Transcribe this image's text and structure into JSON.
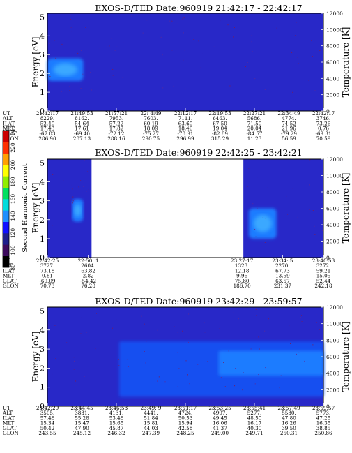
{
  "chart_data": [
    {
      "type": "heatmap",
      "title": "EXOS-D/TED   Date:960919  21:42:17 - 22:42:17",
      "ylabel": "Energy [eV]",
      "y2label": "Temperature [K]",
      "ylim": [
        0,
        5.2
      ],
      "y2lim": [
        0,
        12000
      ],
      "yticks": [
        "0",
        "1",
        "2",
        "3",
        "4",
        "5"
      ],
      "y2ticks": [
        "0",
        "2000",
        "4000",
        "6000",
        "8000",
        "10000",
        "12000"
      ],
      "gap": null,
      "features": [
        {
          "kind": "blob",
          "x0": 0.0,
          "x1": 0.13,
          "y0": 1.6,
          "y1": 2.8,
          "level": "high"
        }
      ],
      "table": {
        "labels": [
          "UT",
          "ALT",
          "ILAT",
          "MLT",
          "GLAT",
          "GLON"
        ],
        "columns": [
          [
            "21:42:17",
            "8229.",
            "52.40",
            "17.43",
            "-67.03",
            "286.90"
          ],
          [
            "21:49:53",
            "8162.",
            "54.64",
            "17.61",
            "-69.40",
            "287.13"
          ],
          [
            "21:57:21",
            "7953.",
            "57.22",
            "17.82",
            "-72.12",
            "288.16"
          ],
          [
            "22: 4:49",
            "7603.",
            "60.19",
            "18.09",
            "-75.27",
            "290.75"
          ],
          [
            "22:12:17",
            "7111.",
            "63.60",
            "18.46",
            "-78.91",
            "296.99"
          ],
          [
            "22:19:53",
            "6463.",
            "67.50",
            "19.04",
            "-82.89",
            "315.29"
          ],
          [
            "22:27:21",
            "5686.",
            "71.50",
            "20.04",
            "-84.57",
            "11.23"
          ],
          [
            "22:34:49",
            "4774.",
            "74.52",
            "21.96",
            "-79.29",
            "56.59"
          ],
          [
            "22:42:17",
            "3746.",
            "73.26",
            "0.76",
            "-69.31",
            "70.59"
          ]
        ]
      }
    },
    {
      "type": "heatmap",
      "title": "EXOS-D/TED   Date:960919  22:42:25 - 23:42:21",
      "ylabel": "Energy [eV]",
      "y2label": "Temperature [K]",
      "ylim": [
        0,
        5.2
      ],
      "y2lim": [
        0,
        12000
      ],
      "yticks": [
        "0",
        "1",
        "2",
        "3",
        "4",
        "5"
      ],
      "y2ticks": [
        "0",
        "2000",
        "4000",
        "6000",
        "8000",
        "10000",
        "12000"
      ],
      "gap": {
        "x0": 0.16,
        "x1": 0.71
      },
      "features": [
        {
          "kind": "blob",
          "x0": 0.09,
          "x1": 0.13,
          "y0": 1.9,
          "y1": 3.1,
          "level": "high"
        },
        {
          "kind": "blob",
          "x0": 0.73,
          "x1": 0.83,
          "y0": 1.0,
          "y1": 2.6,
          "level": "high"
        }
      ],
      "table": {
        "labels": [
          "UT",
          "ALT",
          "ILAT",
          "MLT",
          "GLAT",
          "GLON"
        ],
        "columns": [
          [
            "22:42:25",
            "3727.",
            "73.18",
            "0.81",
            "-69.09",
            "70.73"
          ],
          [
            "22:50: 1",
            "2604.",
            "63.82",
            "2.82",
            "-54.42",
            "76.28"
          ],
          [
            "23:27:17",
            "1323.",
            "12.18",
            "9.96",
            "75.80",
            "186.70"
          ],
          [
            "23:34: 5",
            "2270.",
            "67.73",
            "13.59",
            "63.57",
            "231.37"
          ],
          [
            "23:40:53",
            "3272.",
            "59.21",
            "15.05",
            "52.44",
            "242.18"
          ]
        ],
        "positions": [
          0.0,
          0.148,
          0.705,
          0.852,
          1.0
        ]
      }
    },
    {
      "type": "heatmap",
      "title": "EXOS-D/TED   Date:960919  23:42:29 - 23:59:57",
      "ylabel": "Energy [eV]",
      "y2label": "Temperature [K]",
      "ylim": [
        0,
        5.2
      ],
      "y2lim": [
        0,
        12000
      ],
      "yticks": [
        "0",
        "1",
        "2",
        "3",
        "4",
        "5"
      ],
      "y2ticks": [
        "0",
        "2000",
        "4000",
        "6000",
        "8000",
        "10000",
        "12000"
      ],
      "gap": null,
      "features": [
        {
          "kind": "band",
          "x0": 0.26,
          "x1": 1.0,
          "y0": 0.5,
          "y1": 3.4,
          "level": "mid"
        },
        {
          "kind": "band",
          "x0": 0.62,
          "x1": 1.0,
          "y0": 1.6,
          "y1": 2.9,
          "level": "high"
        }
      ],
      "table": {
        "labels": [
          "UT",
          "ALT",
          "ILAT",
          "MLT",
          "GLAT",
          "GLON"
        ],
        "columns": [
          [
            "23:42:29",
            "3505.",
            "57.48",
            "15.34",
            "50.42",
            "243.55"
          ],
          [
            "23:44:45",
            "3831.",
            "55.28",
            "15.47",
            "47.90",
            "245.12"
          ],
          [
            "23:46:53",
            "4131.",
            "53.48",
            "15.65",
            "45.87",
            "246.32"
          ],
          [
            "23:49: 9",
            "4441.",
            "51.84",
            "15.81",
            "44.03",
            "247.39"
          ],
          [
            "23:51:17",
            "4724.",
            "50.53",
            "15.94",
            "42.58",
            "248.25"
          ],
          [
            "23:53:25",
            "4997.",
            "49.45",
            "16.06",
            "41.37",
            "249.00"
          ],
          [
            "23:55:41",
            "5277.",
            "48.50",
            "16.17",
            "40.30",
            "249.71"
          ],
          [
            "23:57:49",
            "5530.",
            "47.80",
            "16.26",
            "39.50",
            "250.31"
          ],
          [
            "23:59:57",
            "5773.",
            "47.25",
            "16.35",
            "38.85",
            "250.86"
          ]
        ]
      }
    }
  ],
  "colorbar": {
    "label": "Second Harmonic Current",
    "ticks": [
      "80",
      "100",
      "120",
      "140",
      "160",
      "180",
      "200",
      "220",
      "240"
    ],
    "colors": [
      "#000000",
      "#3d0a5e",
      "#1e1e8c",
      "#1010ff",
      "#1e90ff",
      "#00dddd",
      "#00e060",
      "#90ee00",
      "#ffff00",
      "#ffa000",
      "#ff3000",
      "#cc0000"
    ]
  }
}
